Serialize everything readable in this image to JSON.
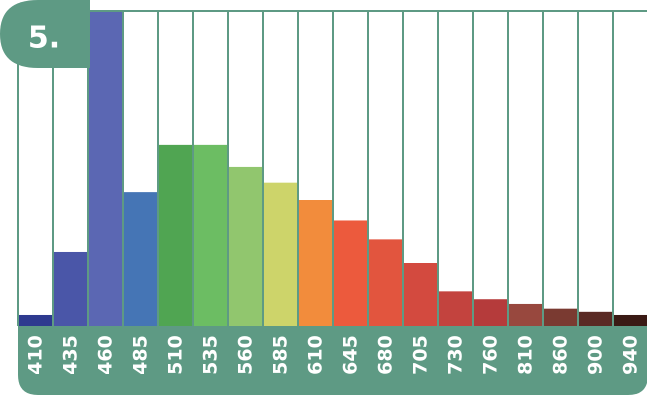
{
  "badge": {
    "label": "5."
  },
  "colors": {
    "frame": "#5e9a84",
    "band": "#5e9a84",
    "background": "#ffffff"
  },
  "chart_data": {
    "type": "bar",
    "categories": [
      "410",
      "435",
      "460",
      "485",
      "510",
      "535",
      "560",
      "585",
      "610",
      "645",
      "680",
      "705",
      "730",
      "760",
      "810",
      "860",
      "900",
      "940"
    ],
    "values": [
      3.5,
      23.5,
      100,
      42.5,
      57.5,
      57.5,
      50.5,
      45.5,
      40,
      33.5,
      27.5,
      20,
      11,
      8.5,
      7,
      5.5,
      4.5,
      3.5
    ],
    "colors": [
      "#2e3a8f",
      "#4a56a8",
      "#5b67b3",
      "#4575b5",
      "#50a552",
      "#6cbd63",
      "#91c66e",
      "#cdd46a",
      "#f28c3c",
      "#ec5a3d",
      "#e2553e",
      "#d34a3f",
      "#c3433e",
      "#b53b3b",
      "#98483e",
      "#7a3a31",
      "#5a2a24",
      "#3a1a14"
    ],
    "ylim": [
      0,
      100
    ],
    "grid": true,
    "legend": "none",
    "title": "",
    "xlabel": "",
    "ylabel": ""
  }
}
